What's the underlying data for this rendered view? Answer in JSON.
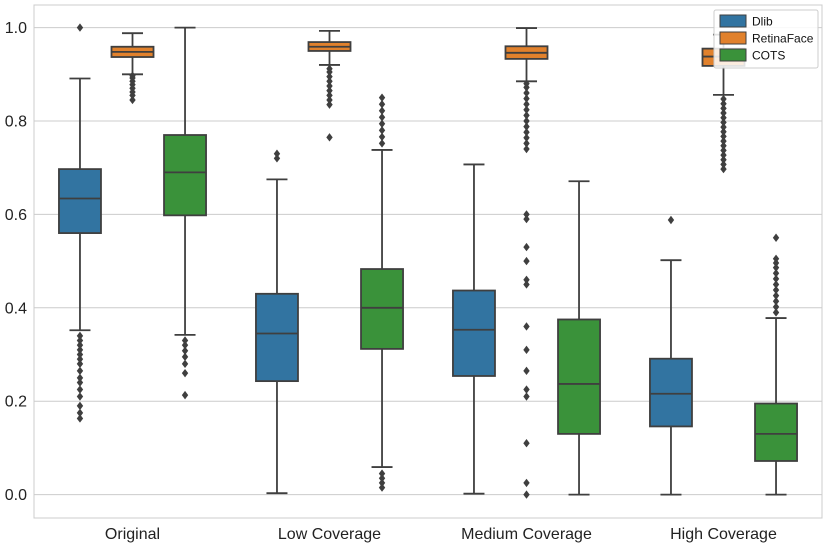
{
  "chart_data": {
    "type": "box",
    "title": "",
    "xlabel": "",
    "ylabel": "",
    "ylim": [
      -0.05,
      1.05
    ],
    "yticks": [
      0.0,
      0.2,
      0.4,
      0.6,
      0.8,
      1.0
    ],
    "ytick_labels": [
      "0.0",
      "0.2",
      "0.4",
      "0.6",
      "0.8",
      "1.0"
    ],
    "grid": true,
    "legend_position": "top-right",
    "categories": [
      "Original",
      "Low Coverage",
      "Medium Coverage",
      "High Coverage"
    ],
    "series": [
      {
        "name": "Dlib",
        "color": "#3274a1",
        "boxes": [
          {
            "whisker_low": 0.352,
            "q1": 0.56,
            "median": 0.634,
            "q3": 0.697,
            "whisker_high": 0.891,
            "outliers": [
              0.163,
              0.175,
              0.19,
              0.21,
              0.225,
              0.24,
              0.25,
              0.265,
              0.28,
              0.29,
              0.3,
              0.31,
              0.32,
              0.33,
              0.34,
              1.0
            ]
          },
          {
            "whisker_low": 0.003,
            "q1": 0.243,
            "median": 0.345,
            "q3": 0.43,
            "whisker_high": 0.675,
            "outliers": [
              0.72,
              0.73
            ]
          },
          {
            "whisker_low": 0.002,
            "q1": 0.254,
            "median": 0.353,
            "q3": 0.437,
            "whisker_high": 0.707,
            "outliers": []
          },
          {
            "whisker_low": 0.0,
            "q1": 0.146,
            "median": 0.216,
            "q3": 0.291,
            "whisker_high": 0.502,
            "outliers": [
              0.588
            ]
          }
        ]
      },
      {
        "name": "RetinaFace",
        "color": "#e1812c",
        "boxes": [
          {
            "whisker_low": 0.9,
            "q1": 0.937,
            "median": 0.948,
            "q3": 0.959,
            "whisker_high": 0.988,
            "outliers": [
              0.845,
              0.855,
              0.862,
              0.87,
              0.878,
              0.885,
              0.892,
              0.897
            ]
          },
          {
            "whisker_low": 0.92,
            "q1": 0.95,
            "median": 0.959,
            "q3": 0.969,
            "whisker_high": 0.993,
            "outliers": [
              0.765,
              0.835,
              0.845,
              0.855,
              0.865,
              0.875,
              0.885,
              0.895,
              0.905,
              0.912
            ]
          },
          {
            "whisker_low": 0.885,
            "q1": 0.933,
            "median": 0.946,
            "q3": 0.96,
            "whisker_high": 0.999,
            "outliers": [
              0.0,
              0.025,
              0.11,
              0.21,
              0.225,
              0.265,
              0.31,
              0.36,
              0.45,
              0.46,
              0.5,
              0.53,
              0.59,
              0.6,
              0.74,
              0.752,
              0.764,
              0.776,
              0.788,
              0.8,
              0.812,
              0.824,
              0.836,
              0.848,
              0.86,
              0.872,
              0.88
            ]
          },
          {
            "whisker_low": 0.856,
            "q1": 0.918,
            "median": 0.938,
            "q3": 0.955,
            "whisker_high": 0.985,
            "outliers": [
              0.697,
              0.707,
              0.717,
              0.727,
              0.737,
              0.747,
              0.757,
              0.767,
              0.777,
              0.787,
              0.797,
              0.807,
              0.817,
              0.827,
              0.837,
              0.847
            ]
          }
        ]
      },
      {
        "name": "COTS",
        "color": "#3a923a",
        "boxes": [
          {
            "whisker_low": 0.342,
            "q1": 0.598,
            "median": 0.69,
            "q3": 0.77,
            "whisker_high": 1.0,
            "outliers": [
              0.213,
              0.26,
              0.28,
              0.295,
              0.308,
              0.32,
              0.33
            ]
          },
          {
            "whisker_low": 0.059,
            "q1": 0.312,
            "median": 0.4,
            "q3": 0.483,
            "whisker_high": 0.738,
            "outliers": [
              0.015,
              0.025,
              0.035,
              0.045,
              0.752,
              0.766,
              0.78,
              0.794,
              0.808,
              0.822,
              0.836,
              0.85
            ]
          },
          {
            "whisker_low": 0.0,
            "q1": 0.13,
            "median": 0.237,
            "q3": 0.375,
            "whisker_high": 0.671,
            "outliers": []
          },
          {
            "whisker_low": 0.0,
            "q1": 0.072,
            "median": 0.13,
            "q3": 0.195,
            "whisker_high": 0.378,
            "outliers": [
              0.39,
              0.402,
              0.414,
              0.426,
              0.438,
              0.45,
              0.462,
              0.474,
              0.486,
              0.496,
              0.505,
              0.55
            ]
          }
        ]
      }
    ]
  }
}
